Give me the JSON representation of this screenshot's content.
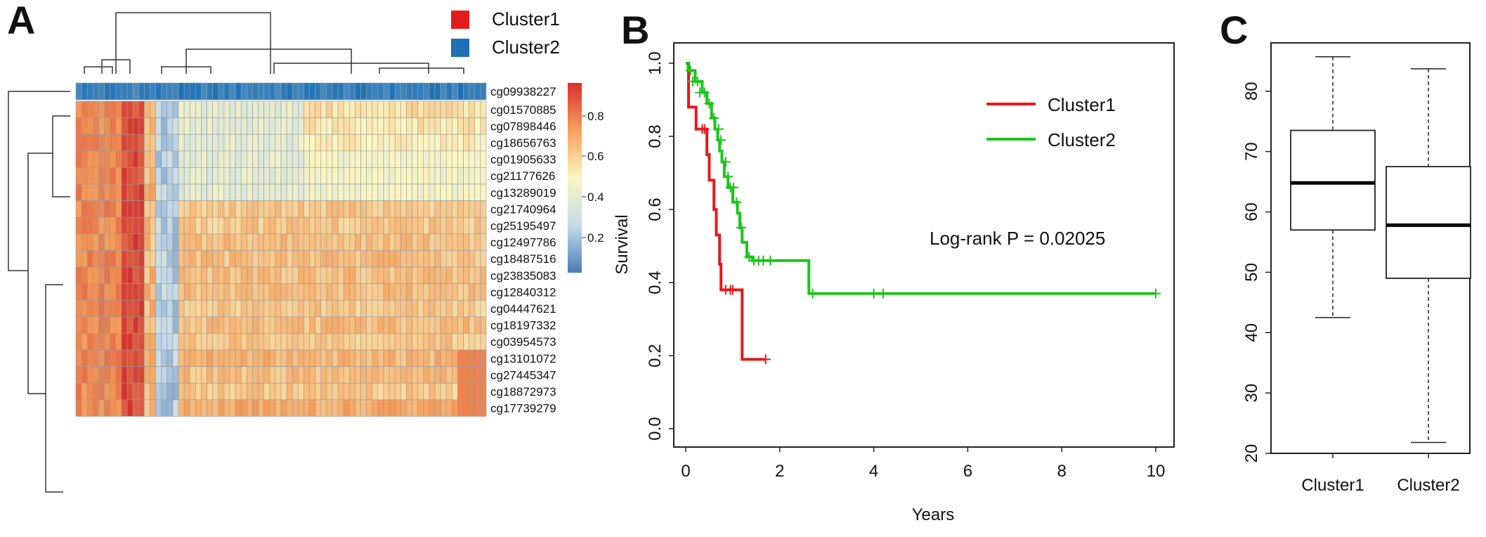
{
  "panels": {
    "a": "A",
    "b": "B",
    "c": "C"
  },
  "colors": {
    "cluster1": "#e41a1c",
    "cluster2": "#1f6fb4",
    "km_cluster1": "#e41a1c",
    "km_cluster2": "#1ec41e",
    "heat_low": "#4a7db8",
    "heat_mid": "#fbf7c2",
    "heat_high": "#d7302b"
  },
  "chart_data": [
    {
      "type": "heatmap",
      "legend": [
        {
          "label": "Cluster1",
          "color": "#e41a1c"
        },
        {
          "label": "Cluster2",
          "color": "#1f6fb4"
        }
      ],
      "annotation_row": "cg09938227",
      "rows": [
        "cg01570885",
        "cg07898446",
        "cg18656763",
        "cg01905633",
        "cg21177626",
        "cg13289019",
        "cg21740964",
        "cg25195497",
        "cg12497786",
        "cg18487516",
        "cg23835083",
        "cg12840312",
        "cg04447621",
        "cg18197332",
        "cg03954573",
        "cg13101072",
        "cg27445347",
        "cg18872973",
        "cg17739279"
      ],
      "columns": 72,
      "colorbar": {
        "ticks": [
          "0.8",
          "0.6",
          "0.4",
          "0.2"
        ],
        "range": [
          0.1,
          0.95
        ]
      }
    },
    {
      "type": "line",
      "xlabel": "Years",
      "ylabel": "Survival",
      "xlim": [
        0,
        10
      ],
      "ylim": [
        0,
        1
      ],
      "xticks": [
        "0",
        "2",
        "4",
        "6",
        "8",
        "10"
      ],
      "yticks": [
        "0.0",
        "0.2",
        "0.4",
        "0.6",
        "0.8",
        "1.0"
      ],
      "annotation": "Log-rank P = 0.02025",
      "legend_position": "top-right",
      "series": [
        {
          "name": "Cluster1",
          "color": "#e41a1c",
          "steps": [
            [
              0,
              1.0
            ],
            [
              0.06,
              0.88
            ],
            [
              0.22,
              0.82
            ],
            [
              0.45,
              0.75
            ],
            [
              0.5,
              0.68
            ],
            [
              0.6,
              0.6
            ],
            [
              0.65,
              0.53
            ],
            [
              0.72,
              0.45
            ],
            [
              0.75,
              0.38
            ],
            [
              1.2,
              0.19
            ],
            [
              1.7,
              0.19
            ]
          ],
          "censors": [
            [
              0.35,
              0.82
            ],
            [
              0.4,
              0.82
            ],
            [
              0.85,
              0.38
            ],
            [
              0.95,
              0.38
            ],
            [
              1.0,
              0.38
            ],
            [
              1.7,
              0.19
            ]
          ]
        },
        {
          "name": "Cluster2",
          "color": "#1ec41e",
          "steps": [
            [
              0,
              1.0
            ],
            [
              0.05,
              0.98
            ],
            [
              0.2,
              0.95
            ],
            [
              0.35,
              0.92
            ],
            [
              0.45,
              0.89
            ],
            [
              0.55,
              0.85
            ],
            [
              0.62,
              0.82
            ],
            [
              0.68,
              0.79
            ],
            [
              0.72,
              0.76
            ],
            [
              0.77,
              0.73
            ],
            [
              0.82,
              0.69
            ],
            [
              0.9,
              0.66
            ],
            [
              1.0,
              0.62
            ],
            [
              1.1,
              0.59
            ],
            [
              1.15,
              0.55
            ],
            [
              1.2,
              0.51
            ],
            [
              1.3,
              0.47
            ],
            [
              1.42,
              0.46
            ],
            [
              2.62,
              0.37
            ],
            [
              10.0,
              0.37
            ]
          ],
          "censors": [
            [
              0.1,
              0.98
            ],
            [
              0.15,
              0.95
            ],
            [
              0.25,
              0.95
            ],
            [
              0.3,
              0.92
            ],
            [
              0.4,
              0.92
            ],
            [
              0.5,
              0.89
            ],
            [
              0.6,
              0.85
            ],
            [
              0.7,
              0.82
            ],
            [
              0.75,
              0.79
            ],
            [
              0.85,
              0.73
            ],
            [
              0.9,
              0.69
            ],
            [
              0.95,
              0.66
            ],
            [
              1.02,
              0.66
            ],
            [
              1.08,
              0.62
            ],
            [
              1.18,
              0.55
            ],
            [
              1.35,
              0.47
            ],
            [
              1.45,
              0.46
            ],
            [
              1.55,
              0.46
            ],
            [
              1.65,
              0.46
            ],
            [
              1.8,
              0.46
            ],
            [
              2.7,
              0.37
            ],
            [
              4.0,
              0.37
            ],
            [
              4.2,
              0.37
            ],
            [
              10.0,
              0.37
            ]
          ]
        }
      ]
    },
    {
      "type": "box",
      "categories": [
        "Cluster1",
        "Cluster2"
      ],
      "ylim": [
        20,
        88
      ],
      "yticks": [
        "20",
        "30",
        "40",
        "50",
        "60",
        "70",
        "80"
      ],
      "boxes": [
        {
          "min": 42.5,
          "q1": 57,
          "median": 64.8,
          "q3": 73.5,
          "max": 85.7
        },
        {
          "min": 21.8,
          "q1": 49,
          "median": 57.8,
          "q3": 67.5,
          "max": 83.7
        }
      ]
    }
  ]
}
